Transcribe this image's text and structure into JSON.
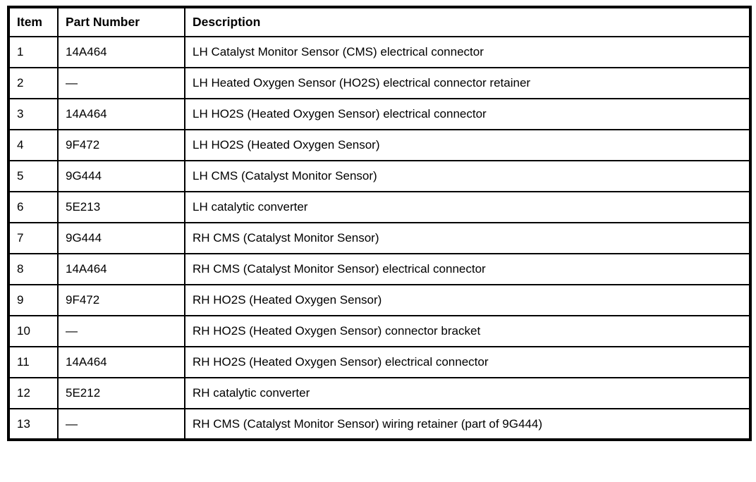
{
  "table": {
    "columns": [
      "Item",
      "Part Number",
      "Description"
    ],
    "rows": [
      {
        "item": "1",
        "part_number": "14A464",
        "description": "LH Catalyst Monitor Sensor (CMS) electrical connector"
      },
      {
        "item": "2",
        "part_number": "—",
        "description": "LH Heated Oxygen Sensor (HO2S) electrical connector retainer"
      },
      {
        "item": "3",
        "part_number": "14A464",
        "description": "LH HO2S (Heated Oxygen Sensor) electrical connector"
      },
      {
        "item": "4",
        "part_number": "9F472",
        "description": "LH HO2S (Heated Oxygen Sensor)"
      },
      {
        "item": "5",
        "part_number": "9G444",
        "description": "LH CMS (Catalyst Monitor Sensor)"
      },
      {
        "item": "6",
        "part_number": "5E213",
        "description": "LH catalytic converter"
      },
      {
        "item": "7",
        "part_number": "9G444",
        "description": "RH CMS (Catalyst Monitor Sensor)"
      },
      {
        "item": "8",
        "part_number": "14A464",
        "description": "RH CMS (Catalyst Monitor Sensor) electrical connector"
      },
      {
        "item": "9",
        "part_number": "9F472",
        "description": "RH HO2S (Heated Oxygen Sensor)"
      },
      {
        "item": "10",
        "part_number": "—",
        "description": "RH HO2S (Heated Oxygen Sensor) connector bracket"
      },
      {
        "item": "11",
        "part_number": "14A464",
        "description": "RH HO2S (Heated Oxygen Sensor) electrical connector"
      },
      {
        "item": "12",
        "part_number": "5E212",
        "description": "RH catalytic converter"
      },
      {
        "item": "13",
        "part_number": "—",
        "description": "RH CMS (Catalyst Monitor Sensor) wiring retainer (part of 9G444)"
      }
    ]
  }
}
